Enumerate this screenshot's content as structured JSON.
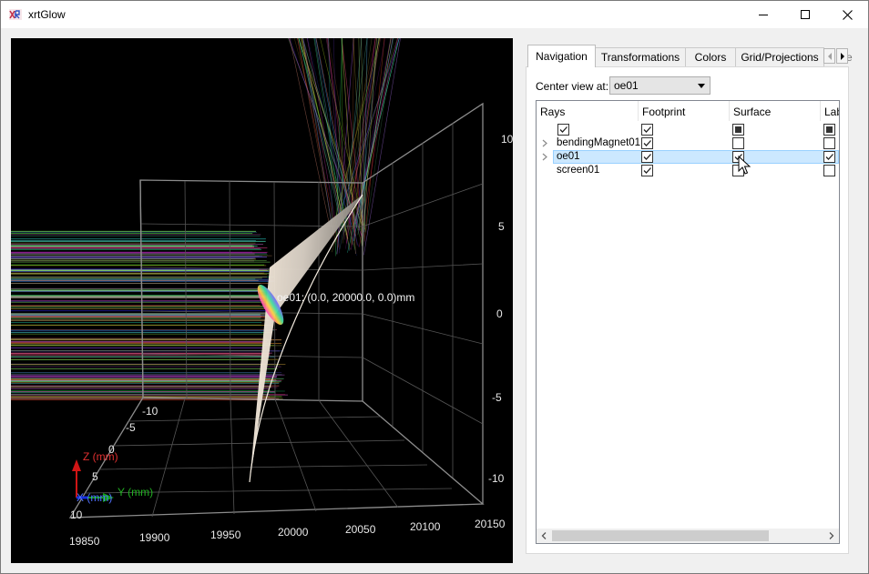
{
  "window": {
    "title": "xrtGlow",
    "colors": {
      "background": "#f0f0f0",
      "viewport": "#000000",
      "selection": "#cce8ff"
    }
  },
  "viewport": {
    "y_ticks": [
      "10",
      "5",
      "0",
      "-5",
      "-10"
    ],
    "x_ticks": [
      "19850",
      "19900",
      "19950",
      "20000",
      "20050",
      "20100",
      "20150"
    ],
    "z_ticks": [
      "-10",
      "-5",
      "0",
      "5",
      "10"
    ],
    "oe_label": "oe01: (0.0, 20000.0, 0.0)mm",
    "triad": {
      "z_label": "Z (mm)",
      "y_label": "Y (mm)",
      "x_label": "X (mm)"
    }
  },
  "panel": {
    "tabs": [
      {
        "label": "Navigation",
        "active": true
      },
      {
        "label": "Transformations"
      },
      {
        "label": "Colors"
      },
      {
        "label": "Grid/Projections"
      }
    ],
    "tab_overflow_glyph": "e",
    "center_view_label": "Center view at:",
    "center_view_value": "oe01",
    "columns": [
      "Rays",
      "Footprint",
      "Surface",
      "Lab"
    ],
    "header_row": {
      "rays": "checked",
      "footprint": "checked",
      "surface": "partial",
      "labels": "partial"
    },
    "rows": [
      {
        "label": "bendingMagnet01",
        "expandable": true,
        "footprint": "checked",
        "surface": "unchecked",
        "labels": "unchecked"
      },
      {
        "label": "oe01",
        "expandable": true,
        "selected": true,
        "footprint": "checked",
        "surface": "checked",
        "labels": "checked"
      },
      {
        "label": "screen01",
        "expandable": false,
        "footprint": "checked",
        "surface": "unchecked",
        "labels": "unchecked"
      }
    ]
  }
}
